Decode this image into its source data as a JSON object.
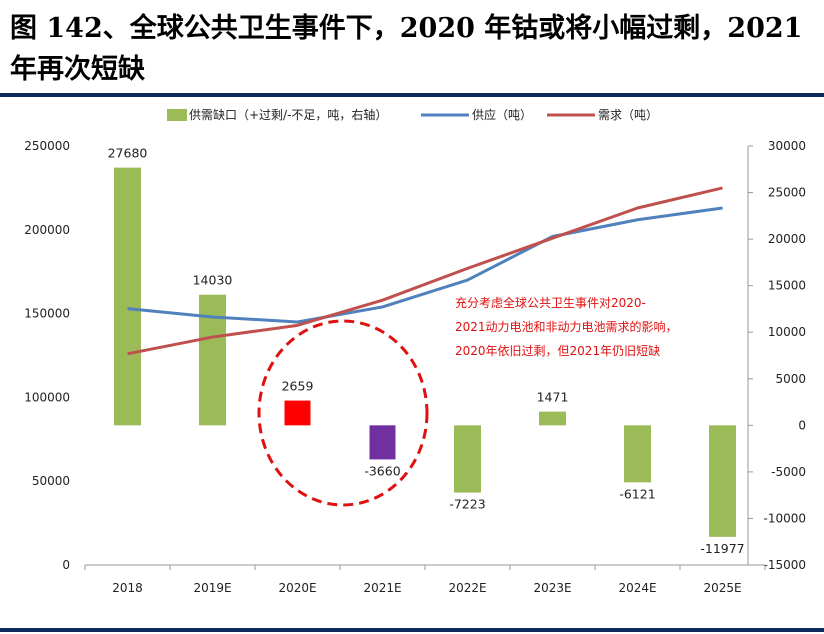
{
  "title": "图 142、全球公共卫生事件下，2020 年钴或将小幅过剩，2021 年再次短缺",
  "chart_data": {
    "type": "bar",
    "categories": [
      "2018",
      "2019E",
      "2020E",
      "2021E",
      "2022E",
      "2023E",
      "2024E",
      "2025E"
    ],
    "series": [
      {
        "name": "供需缺口（+过剩/-不足，吨，右轴）",
        "type": "bar",
        "axis": "right",
        "values": [
          27680,
          14030,
          2659,
          -3660,
          -7223,
          1471,
          -6121,
          -11977
        ],
        "color": "#9bbb59",
        "point_colors": [
          "#9bbb59",
          "#9bbb59",
          "#ff0000",
          "#7030a0",
          "#9bbb59",
          "#9bbb59",
          "#9bbb59",
          "#9bbb59"
        ]
      },
      {
        "name": "供应（吨）",
        "type": "line",
        "axis": "left",
        "values": [
          153000,
          148000,
          145000,
          154000,
          170000,
          196000,
          206000,
          213000
        ],
        "color": "#4f81bd"
      },
      {
        "name": "需求（吨）",
        "type": "line",
        "axis": "left",
        "values": [
          126000,
          136000,
          143000,
          158000,
          177000,
          195000,
          213000,
          225000
        ],
        "color": "#c0504d"
      }
    ],
    "left_axis": {
      "ylim": [
        0,
        250000
      ],
      "ticks": [
        "0",
        "50000",
        "100000",
        "150000",
        "200000",
        "250000"
      ]
    },
    "right_axis": {
      "ylim": [
        -15000,
        30000
      ],
      "ticks": [
        "-15000",
        "-10000",
        "-5000",
        "0",
        "5000",
        "10000",
        "15000",
        "20000",
        "25000",
        "30000"
      ]
    },
    "legend_position": "top",
    "annotation": {
      "lines": [
        "充分考虑全球公共卫生事件对2020-",
        "2021动力电池和非动力电池需求的影响，",
        "2020年依旧过剩，但2021年仍旧短缺"
      ],
      "color": "#e01010"
    },
    "highlight_circle": {
      "style": "dashed",
      "color": "#e01010"
    }
  }
}
